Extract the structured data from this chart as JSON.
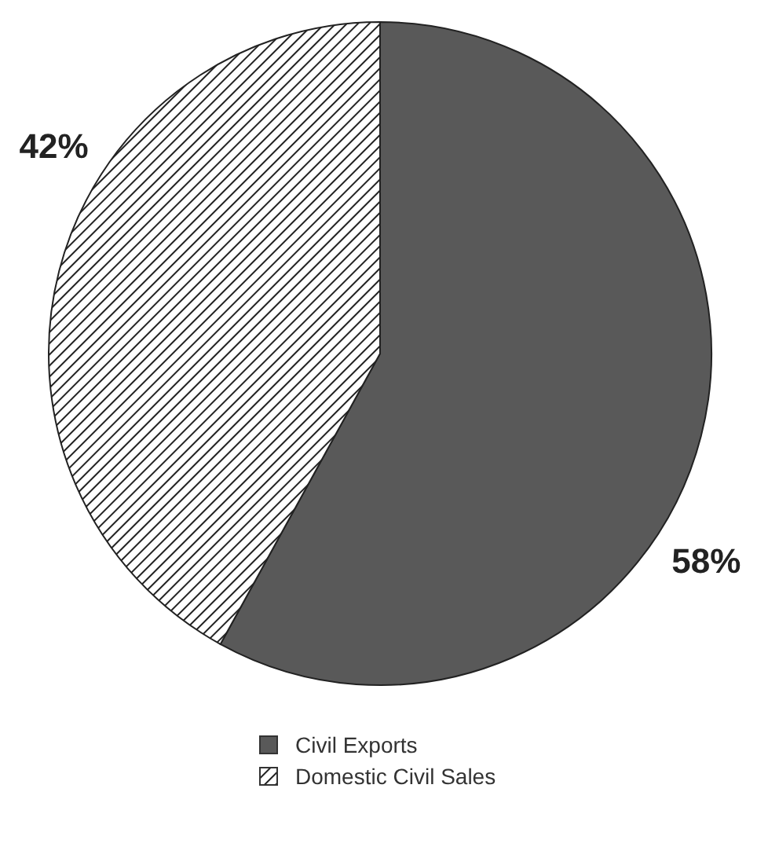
{
  "chart_data": {
    "type": "pie",
    "categories": [
      "Civil Exports",
      "Domestic Civil Sales"
    ],
    "values": [
      58,
      42
    ],
    "colors": [
      "#595959",
      "#222222"
    ],
    "value_labels": [
      "58%",
      "42%"
    ],
    "legend": "bottom"
  }
}
